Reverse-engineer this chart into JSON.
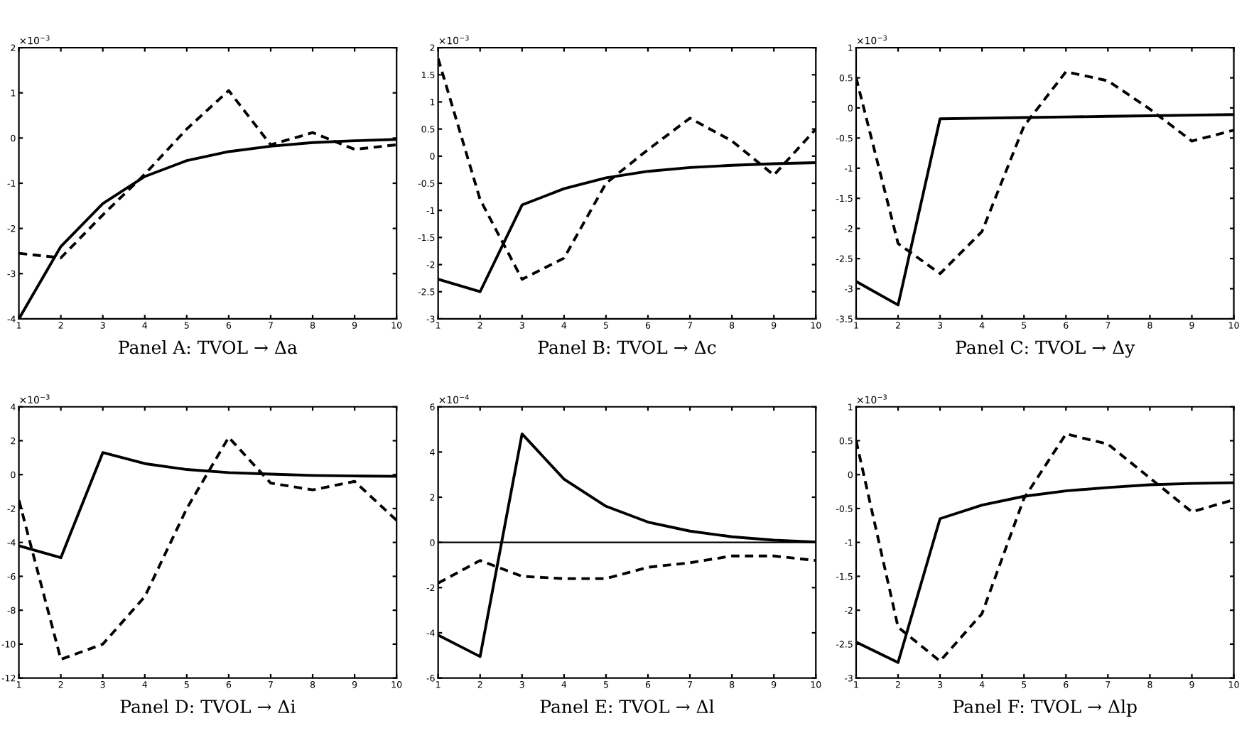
{
  "chart_data": [
    {
      "type": "line",
      "xlabel": "Panel A: TVOL → Δa",
      "annotations": [
        "×10$^{−3}$"
      ],
      "x": [
        1,
        2,
        3,
        4,
        5,
        6,
        7,
        8,
        9,
        10
      ],
      "xlim": [
        1,
        10
      ],
      "xticks": [
        1,
        2,
        3,
        4,
        5,
        6,
        7,
        8,
        9,
        10
      ],
      "ylim": [
        -4,
        2
      ],
      "yticks": [
        -4,
        -3,
        -2,
        -1,
        0,
        1,
        2
      ],
      "series": [
        {
          "color": "#000000",
          "line_style": "solid",
          "values": [
            -4,
            -2.4,
            -1.45,
            -0.85,
            -0.5,
            -0.3,
            -0.18,
            -0.1,
            -0.06,
            -0.03
          ]
        },
        {
          "color": "#000000",
          "line_style": "dashed",
          "values": [
            -2.55,
            -2.65,
            -1.7,
            -0.8,
            0.2,
            1.05,
            -0.15,
            0.12,
            -0.25,
            -0.15
          ]
        }
      ]
    },
    {
      "type": "line",
      "xlabel": "Panel B: TVOL → Δc",
      "annotations": [
        "×10$^{−3}$"
      ],
      "x": [
        1,
        2,
        3,
        4,
        5,
        6,
        7,
        8,
        9,
        10
      ],
      "xlim": [
        1,
        10
      ],
      "xticks": [
        1,
        2,
        3,
        4,
        5,
        6,
        7,
        8,
        9,
        10
      ],
      "ylim": [
        -3,
        2
      ],
      "yticks": [
        -3,
        -2.5,
        -2,
        -1.5,
        -1,
        -0.5,
        0,
        0.5,
        1,
        1.5,
        2
      ],
      "series": [
        {
          "color": "#000000",
          "line_style": "solid",
          "values": [
            -2.27,
            -2.5,
            -0.9,
            -0.6,
            -0.4,
            -0.28,
            -0.21,
            -0.17,
            -0.14,
            -0.12
          ]
        },
        {
          "color": "#000000",
          "line_style": "dashed",
          "values": [
            1.8,
            -0.8,
            -2.27,
            -1.88,
            -0.5,
            0.12,
            0.7,
            0.28,
            -0.35,
            0.5
          ]
        }
      ]
    },
    {
      "type": "line",
      "xlabel": "Panel C: TVOL → Δy",
      "annotations": [
        "×10$^{−3}$"
      ],
      "x": [
        1,
        2,
        3,
        4,
        5,
        6,
        7,
        8,
        9,
        10
      ],
      "xlim": [
        1,
        10
      ],
      "xticks": [
        1,
        2,
        3,
        4,
        5,
        6,
        7,
        8,
        9,
        10
      ],
      "ylim": [
        -3.5,
        1
      ],
      "yticks": [
        -3.5,
        -3,
        -2.5,
        -2,
        -1.5,
        -1,
        -0.5,
        0,
        0.5,
        1
      ],
      "series": [
        {
          "color": "#000000",
          "line_style": "solid",
          "values": [
            -2.88,
            -3.27,
            -0.18,
            -0.17,
            -0.16,
            -0.15,
            -0.14,
            -0.13,
            -0.12,
            -0.11
          ]
        },
        {
          "color": "#000000",
          "line_style": "dashed",
          "values": [
            0.5,
            -2.25,
            -2.75,
            -2.05,
            -0.3,
            0.6,
            0.45,
            -0.02,
            -0.55,
            -0.37
          ]
        }
      ]
    },
    {
      "type": "line",
      "xlabel": "Panel D: TVOL → Δi",
      "annotations": [
        "×10$^{−3}$"
      ],
      "x": [
        1,
        2,
        3,
        4,
        5,
        6,
        7,
        8,
        9,
        10
      ],
      "xlim": [
        1,
        10
      ],
      "xticks": [
        1,
        2,
        3,
        4,
        5,
        6,
        7,
        8,
        9,
        10
      ],
      "ylim": [
        -12,
        4
      ],
      "yticks": [
        -12,
        -10,
        -8,
        -6,
        -4,
        -2,
        0,
        2,
        4
      ],
      "series": [
        {
          "color": "#000000",
          "line_style": "solid",
          "values": [
            -4.2,
            -4.9,
            1.3,
            0.65,
            0.3,
            0.12,
            0.03,
            -0.05,
            -0.08,
            -0.1
          ]
        },
        {
          "color": "#000000",
          "line_style": "dashed",
          "values": [
            -1.5,
            -10.9,
            -10,
            -7.2,
            -2,
            2.2,
            -0.5,
            -0.9,
            -0.4,
            -2.7
          ]
        }
      ]
    },
    {
      "type": "line",
      "xlabel": "Panel E: TVOL → Δl",
      "annotations": [
        "×10$^{−4}$"
      ],
      "x": [
        1,
        2,
        3,
        4,
        5,
        6,
        7,
        8,
        9,
        10
      ],
      "xlim": [
        1,
        10
      ],
      "xticks": [
        1,
        2,
        3,
        4,
        5,
        6,
        7,
        8,
        9,
        10
      ],
      "ylim": [
        -6,
        6
      ],
      "yticks": [
        -6,
        -4,
        -2,
        0,
        2,
        4,
        6
      ],
      "ref_lines": [
        {
          "axis": "y",
          "value": 0,
          "color": "#000000",
          "line_style": "solid"
        }
      ],
      "series": [
        {
          "color": "#000000",
          "line_style": "solid",
          "values": [
            -4.1,
            -5.05,
            4.8,
            2.8,
            1.6,
            0.9,
            0.5,
            0.25,
            0.1,
            0.02
          ]
        },
        {
          "color": "#000000",
          "line_style": "dashed",
          "values": [
            -1.8,
            -0.8,
            -1.5,
            -1.6,
            -1.6,
            -1.1,
            -0.9,
            -0.6,
            -0.6,
            -0.8
          ]
        }
      ]
    },
    {
      "type": "line",
      "xlabel": "Panel F: TVOL → Δlp",
      "annotations": [
        "×10$^{−3}$"
      ],
      "x": [
        1,
        2,
        3,
        4,
        5,
        6,
        7,
        8,
        9,
        10
      ],
      "xlim": [
        1,
        10
      ],
      "xticks": [
        1,
        2,
        3,
        4,
        5,
        6,
        7,
        8,
        9,
        10
      ],
      "ylim": [
        -3,
        1
      ],
      "yticks": [
        -3,
        -2.5,
        -2,
        -1.5,
        -1,
        -0.5,
        0,
        0.5,
        1
      ],
      "series": [
        {
          "color": "#000000",
          "line_style": "solid",
          "values": [
            -2.47,
            -2.77,
            -0.65,
            -0.45,
            -0.32,
            -0.24,
            -0.19,
            -0.15,
            -0.13,
            -0.12
          ]
        },
        {
          "color": "#000000",
          "line_style": "dashed",
          "values": [
            0.5,
            -2.25,
            -2.75,
            -2.05,
            -0.35,
            0.6,
            0.45,
            -0.05,
            -0.55,
            -0.37
          ]
        }
      ]
    }
  ]
}
